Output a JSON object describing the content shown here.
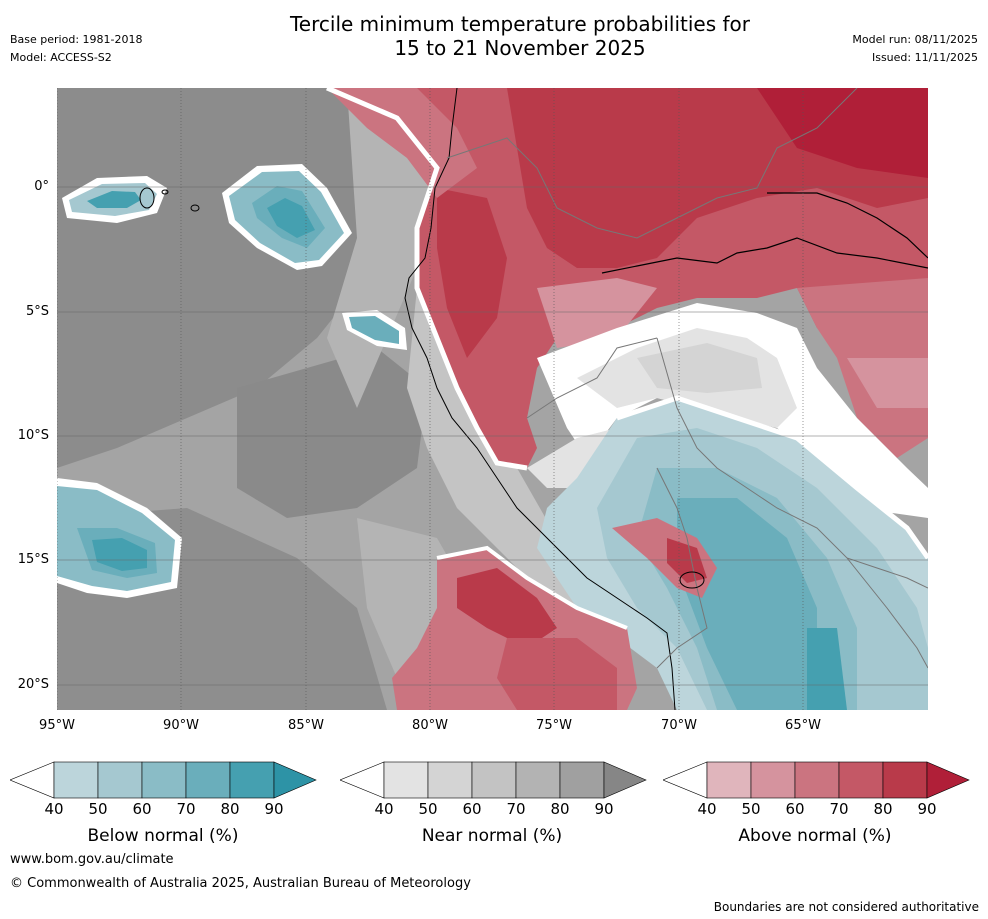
{
  "header": {
    "title_line1": "Tercile minimum temperature probabilities for",
    "title_line2": "15 to 21 November 2025",
    "base_period": "Base period: 1981-2018",
    "model": "Model: ACCESS-S2",
    "model_run": "Model run: 08/11/2025",
    "issued": "Issued: 11/11/2025"
  },
  "axes": {
    "lat_labels": [
      "0°",
      "5°S",
      "10°S",
      "15°S",
      "20°S"
    ],
    "lon_labels": [
      "95°W",
      "90°W",
      "85°W",
      "80°W",
      "75°W",
      "70°W",
      "65°W"
    ]
  },
  "legends": [
    {
      "title": "Below normal (%)",
      "ticks": [
        "40",
        "50",
        "60",
        "70",
        "80",
        "90"
      ],
      "colors": [
        "#ffffff",
        "#bcd5db",
        "#a5c8d0",
        "#8abcc6",
        "#6aaebb",
        "#45a0b0",
        "#2d93a6"
      ]
    },
    {
      "title": "Near normal (%)",
      "ticks": [
        "40",
        "50",
        "60",
        "70",
        "80",
        "90"
      ],
      "colors": [
        "#ffffff",
        "#e3e3e3",
        "#d4d4d4",
        "#c3c3c3",
        "#b3b3b3",
        "#a0a0a0",
        "#868686"
      ]
    },
    {
      "title": "Above normal (%)",
      "ticks": [
        "40",
        "50",
        "60",
        "70",
        "80",
        "90"
      ],
      "colors": [
        "#ffffff",
        "#e0b5bc",
        "#d5939e",
        "#cb7480",
        "#c45866",
        "#b93a4a",
        "#b01f38"
      ]
    }
  ],
  "footer": {
    "url": "www.bom.gov.au/climate",
    "copyright": "© Commonwealth of Australia 2025, Australian Bureau of Meteorology",
    "disclaimer": "Boundaries are not considered authoritative"
  }
}
